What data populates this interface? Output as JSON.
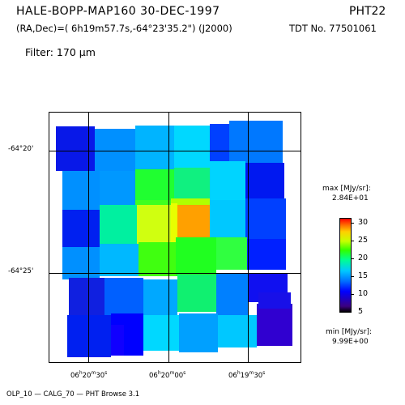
{
  "header": {
    "title": "HALE-BOPP-MAP160   30-DEC-1997",
    "instrument": "PHT22",
    "coords": "(RA,Dec)=( 6h19m57.7s,-64°23'35.2\") (J2000)",
    "tdt": "TDT No. 77501061",
    "filter": "Filter: 170 μm"
  },
  "axes": {
    "y_labels": [
      "-64°20'",
      "-64°25'"
    ],
    "x_labels": [
      {
        "h": "06",
        "hu": "h",
        "m": "20",
        "mu": "m",
        "s": "30",
        "su": "s"
      },
      {
        "h": "06",
        "hu": "h",
        "m": "20",
        "mu": "m",
        "s": "00",
        "su": "s"
      },
      {
        "h": "06",
        "hu": "h",
        "m": "19",
        "mu": "m",
        "s": "30",
        "su": "s"
      }
    ]
  },
  "colorbar": {
    "max_label": "max [MJy/sr]:",
    "max_value": "2.84E+01",
    "min_label": "min [MJy/sr]:",
    "min_value": "9.99E+00",
    "ticks": [
      "30",
      "25",
      "20",
      "15",
      "10",
      "5"
    ]
  },
  "footer": "OLP_10   — CALG_70   — PHT Browse 3.1",
  "colors": {
    "lowest": "#3c00a0",
    "low": "#0000ff",
    "mid": "#00c0ff",
    "green": "#00ff60",
    "yellow": "#e0ff00",
    "peak": "#ff9000"
  }
}
